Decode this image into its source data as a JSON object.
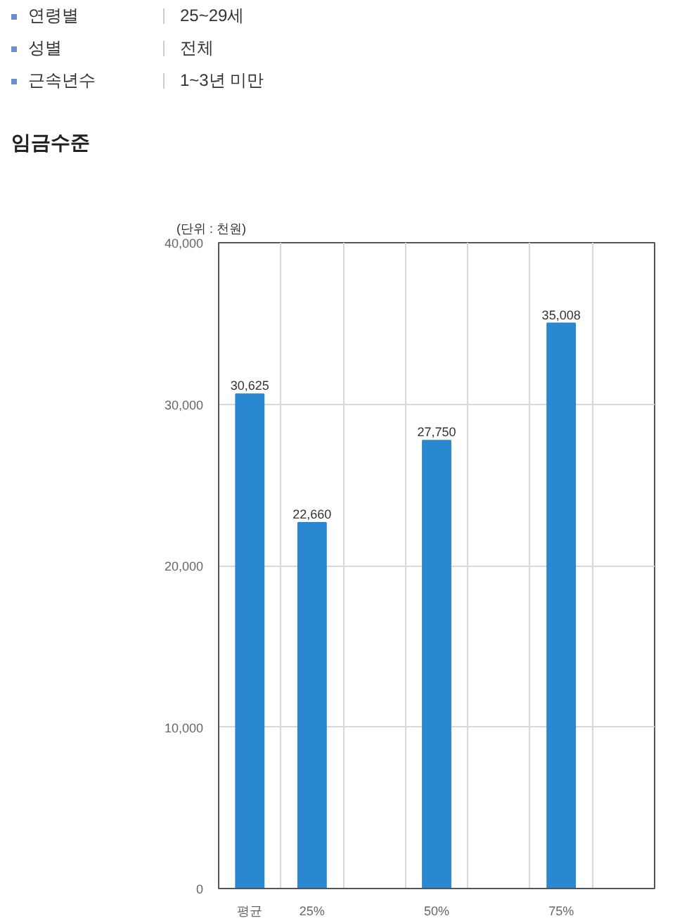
{
  "chart_data": {
    "type": "bar",
    "title": "임금수준",
    "ylabel": "(단위 : 천원)",
    "annotations": [
      "연령별",
      "25~29세",
      "성별",
      "전체",
      "근속년수",
      "1~3년 미만"
    ],
    "categories": [
      "평균",
      "25%",
      null,
      "50%",
      null,
      "75%",
      null
    ],
    "values": [
      30625,
      22660,
      null,
      27750,
      null,
      35008,
      null
    ],
    "value_labels": [
      "30,625",
      "22,660",
      null,
      "27,750",
      null,
      "35,008",
      null
    ],
    "color": "#2a88d0",
    "ylim": [
      0,
      40000
    ],
    "yticks": [
      0,
      {
        "value": 10000,
        "label": "10,000"
      },
      {
        "value": 20000,
        "label": "20,000"
      },
      {
        "value": 30000,
        "label": "30,000"
      },
      {
        "value": 40000,
        "label": "40,000"
      }
    ],
    "grid": true
  }
}
